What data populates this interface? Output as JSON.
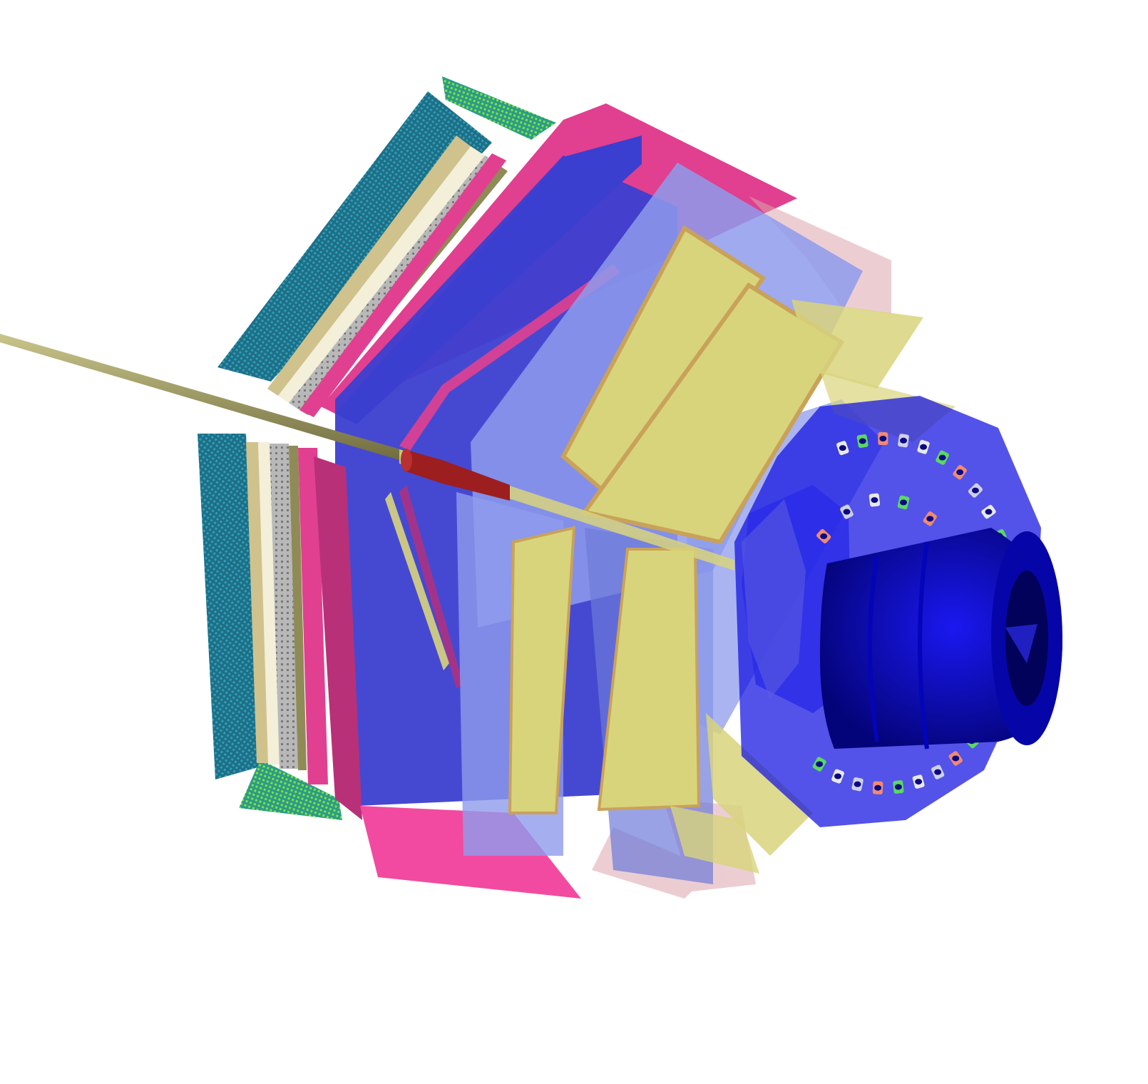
{
  "scene": {
    "kind": "3d-detector-geometry-render",
    "background": "#ffffff",
    "palette": {
      "teal_mesh": "#1f6e86",
      "teal_mesh_light": "#2aa0b8",
      "lime_mesh": "#7fe63a",
      "magenta": "#e0408f",
      "magenta_dark": "#b83078",
      "pink": "#f24aa0",
      "blue_panel": "#3b3fd0",
      "periwinkle": "#8e9bec",
      "periwinkle_dark": "#6d7ad8",
      "yellow_panel": "#d8d47c",
      "tan_edge": "#c9a25a",
      "light_pink": "#dca5ad",
      "beam_pipe": "#8f8b57",
      "red_cylinder": "#9c1e1e",
      "deep_blue": "#0a07d6",
      "navy": "#05068f",
      "gray": "#b8b8b8",
      "cream": "#f3efd8"
    },
    "pmt_colors": [
      "#e8e8e8",
      "#5bd862",
      "#f08a72",
      "#cfcfe8"
    ]
  }
}
